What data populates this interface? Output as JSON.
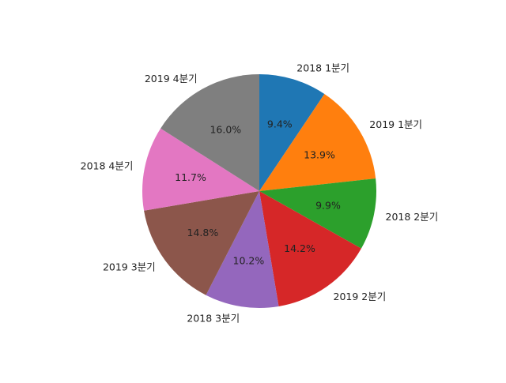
{
  "chart_data": {
    "type": "pie",
    "title": "",
    "start_angle_deg": 90,
    "direction": "clockwise",
    "legend": "none",
    "slices": [
      {
        "label": "2018 1분기",
        "pct_label": "9.4%",
        "value": 9.4,
        "color": "#1f77b4"
      },
      {
        "label": "2019 1분기",
        "pct_label": "13.9%",
        "value": 13.9,
        "color": "#ff7f0e"
      },
      {
        "label": "2018 2분기",
        "pct_label": "9.9%",
        "value": 9.9,
        "color": "#2ca02c"
      },
      {
        "label": "2019 2분기",
        "pct_label": "14.2%",
        "value": 14.2,
        "color": "#d62728"
      },
      {
        "label": "2018 3분기",
        "pct_label": "10.2%",
        "value": 10.2,
        "color": "#9467bd"
      },
      {
        "label": "2019 3분기",
        "pct_label": "14.8%",
        "value": 14.8,
        "color": "#8c564b"
      },
      {
        "label": "2018 4분기",
        "pct_label": "11.7%",
        "value": 11.7,
        "color": "#e377c2"
      },
      {
        "label": "2019 4분기",
        "pct_label": "16.0%",
        "value": 16.0,
        "color": "#7f7f7f"
      }
    ]
  }
}
